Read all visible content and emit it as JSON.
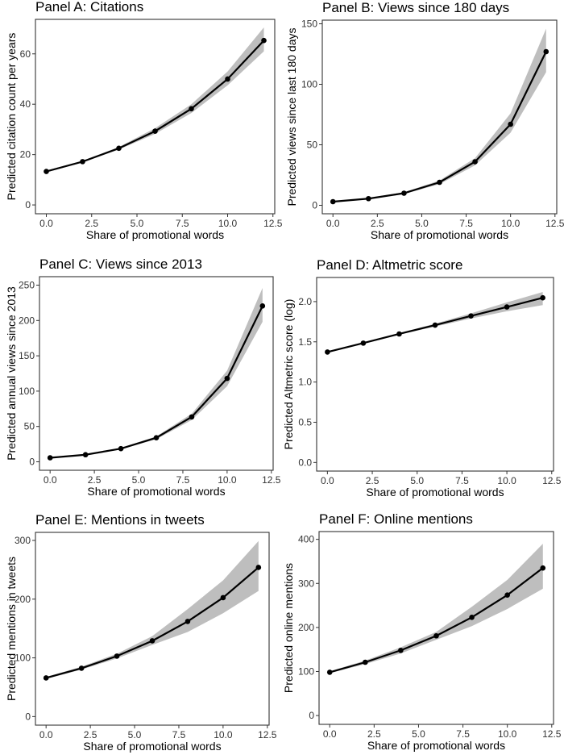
{
  "chart_data": [
    {
      "type": "line",
      "title": "Panel A: Citations",
      "xlabel": "Share of promotional words",
      "ylabel": "Predicted citation count per years",
      "x": [
        0,
        2,
        4,
        6,
        8,
        10,
        12
      ],
      "values": [
        13.3,
        17.2,
        22.5,
        29.3,
        38.2,
        50.0,
        65.3
      ],
      "ci_lower": [
        13.0,
        16.8,
        22.0,
        28.2,
        36.5,
        47.5,
        61.0
      ],
      "ci_upper": [
        13.6,
        17.6,
        23.0,
        30.5,
        40.0,
        53.0,
        70.5
      ],
      "xlim": [
        -0.6,
        12.6
      ],
      "ylim": [
        -3.5,
        73.7
      ],
      "xticks": [
        "0.0",
        "2.5",
        "5.0",
        "7.5",
        "10.0",
        "12.5"
      ],
      "yticks": [
        "0",
        "20",
        "40",
        "60"
      ],
      "grid": false
    },
    {
      "type": "line",
      "title": "Panel B: Views since 180 days",
      "xlabel": "Share of promotional words",
      "ylabel": "Predicted views since last 180 days",
      "x": [
        0,
        2,
        4,
        6,
        8,
        10,
        12
      ],
      "values": [
        3,
        5.5,
        10,
        19,
        36,
        67,
        127
      ],
      "ci_lower": [
        2.7,
        5.0,
        9.3,
        17.5,
        33,
        60,
        110
      ],
      "ci_upper": [
        3.3,
        6.0,
        10.8,
        20.5,
        39,
        76,
        146
      ],
      "xlim": [
        -0.6,
        12.6
      ],
      "ylim": [
        -7,
        153
      ],
      "xticks": [
        "0.0",
        "2.5",
        "5.0",
        "7.5",
        "10.0",
        "12.5"
      ],
      "yticks": [
        "0",
        "50",
        "100",
        "150"
      ],
      "grid": false
    },
    {
      "type": "line",
      "title": "Panel C: Views since 2013",
      "xlabel": "Share of promotional words",
      "ylabel": "Predicted annual views since 2013",
      "x": [
        0,
        2,
        4,
        6,
        8,
        10,
        12
      ],
      "values": [
        5.7,
        10,
        18.6,
        34,
        63.5,
        118,
        220.5
      ],
      "ci_lower": [
        5.3,
        9.4,
        17.6,
        32,
        59,
        107,
        198
      ],
      "ci_upper": [
        6.1,
        10.6,
        19.6,
        36,
        68,
        129,
        246
      ],
      "xlim": [
        -0.6,
        12.6
      ],
      "ylim": [
        -12,
        262
      ],
      "xticks": [
        "0.0",
        "2.5",
        "5.0",
        "7.5",
        "10.0",
        "12.5"
      ],
      "yticks": [
        "0",
        "50",
        "100",
        "150",
        "200",
        "250"
      ],
      "grid": false
    },
    {
      "type": "line",
      "title": "Panel D: Altmetric score",
      "xlabel": "Share of promotional words",
      "ylabel": "Predicted Altmetric score (log)",
      "x": [
        0,
        2,
        4,
        6,
        8,
        10,
        12
      ],
      "values": [
        1.373,
        1.484,
        1.598,
        1.708,
        1.822,
        1.933,
        2.047
      ],
      "ci_lower": [
        1.365,
        1.476,
        1.588,
        1.69,
        1.79,
        1.88,
        1.956
      ],
      "ci_upper": [
        1.381,
        1.492,
        1.608,
        1.726,
        1.854,
        1.99,
        2.12
      ],
      "xlim": [
        -0.6,
        12.6
      ],
      "ylim": [
        -0.107,
        2.3
      ],
      "xticks": [
        "0.0",
        "2.5",
        "5.0",
        "7.5",
        "10.0",
        "12.5"
      ],
      "yticks": [
        "0.0",
        "0.5",
        "1.0",
        "1.5",
        "2.0"
      ],
      "grid": false
    },
    {
      "type": "line",
      "title": "Panel E: Mentions in tweets",
      "xlabel": "Share of promotional words",
      "ylabel": "Predicted mentions in tweets",
      "x": [
        0,
        2,
        4,
        6,
        8,
        10,
        12
      ],
      "values": [
        65.8,
        82.3,
        103,
        129,
        162,
        202.5,
        254
      ],
      "ci_lower": [
        64,
        80,
        99,
        122,
        144,
        176,
        214
      ],
      "ci_upper": [
        67.5,
        85,
        107,
        137,
        183,
        232,
        299
      ],
      "xlim": [
        -0.6,
        12.6
      ],
      "ylim": [
        -14.6,
        313.7
      ],
      "xticks": [
        "0.0",
        "2.5",
        "5.0",
        "7.5",
        "10.0",
        "12.5"
      ],
      "yticks": [
        "0",
        "100",
        "200",
        "300"
      ],
      "grid": false
    },
    {
      "type": "line",
      "title": "Panel F: Online mentions",
      "xlabel": "Share of promotional words",
      "ylabel": "Predicted online mentions",
      "x": [
        0,
        2,
        4,
        6,
        8,
        10,
        12
      ],
      "values": [
        98.3,
        121,
        148,
        181,
        223,
        273.6,
        335
      ],
      "ci_lower": [
        96,
        117,
        141,
        172,
        203,
        242,
        288
      ],
      "ci_upper": [
        100.5,
        125,
        155,
        190,
        247,
        308,
        390
      ],
      "xlim": [
        -0.6,
        12.6
      ],
      "ylim": [
        -20,
        417.7
      ],
      "xticks": [
        "0.0",
        "2.5",
        "5.0",
        "7.5",
        "10.0",
        "12.5"
      ],
      "yticks": [
        "0",
        "100",
        "200",
        "300",
        "400"
      ],
      "grid": false
    }
  ],
  "colors": {
    "line": "#000000",
    "ribbon": "#bebebe",
    "frame": "#333333"
  }
}
